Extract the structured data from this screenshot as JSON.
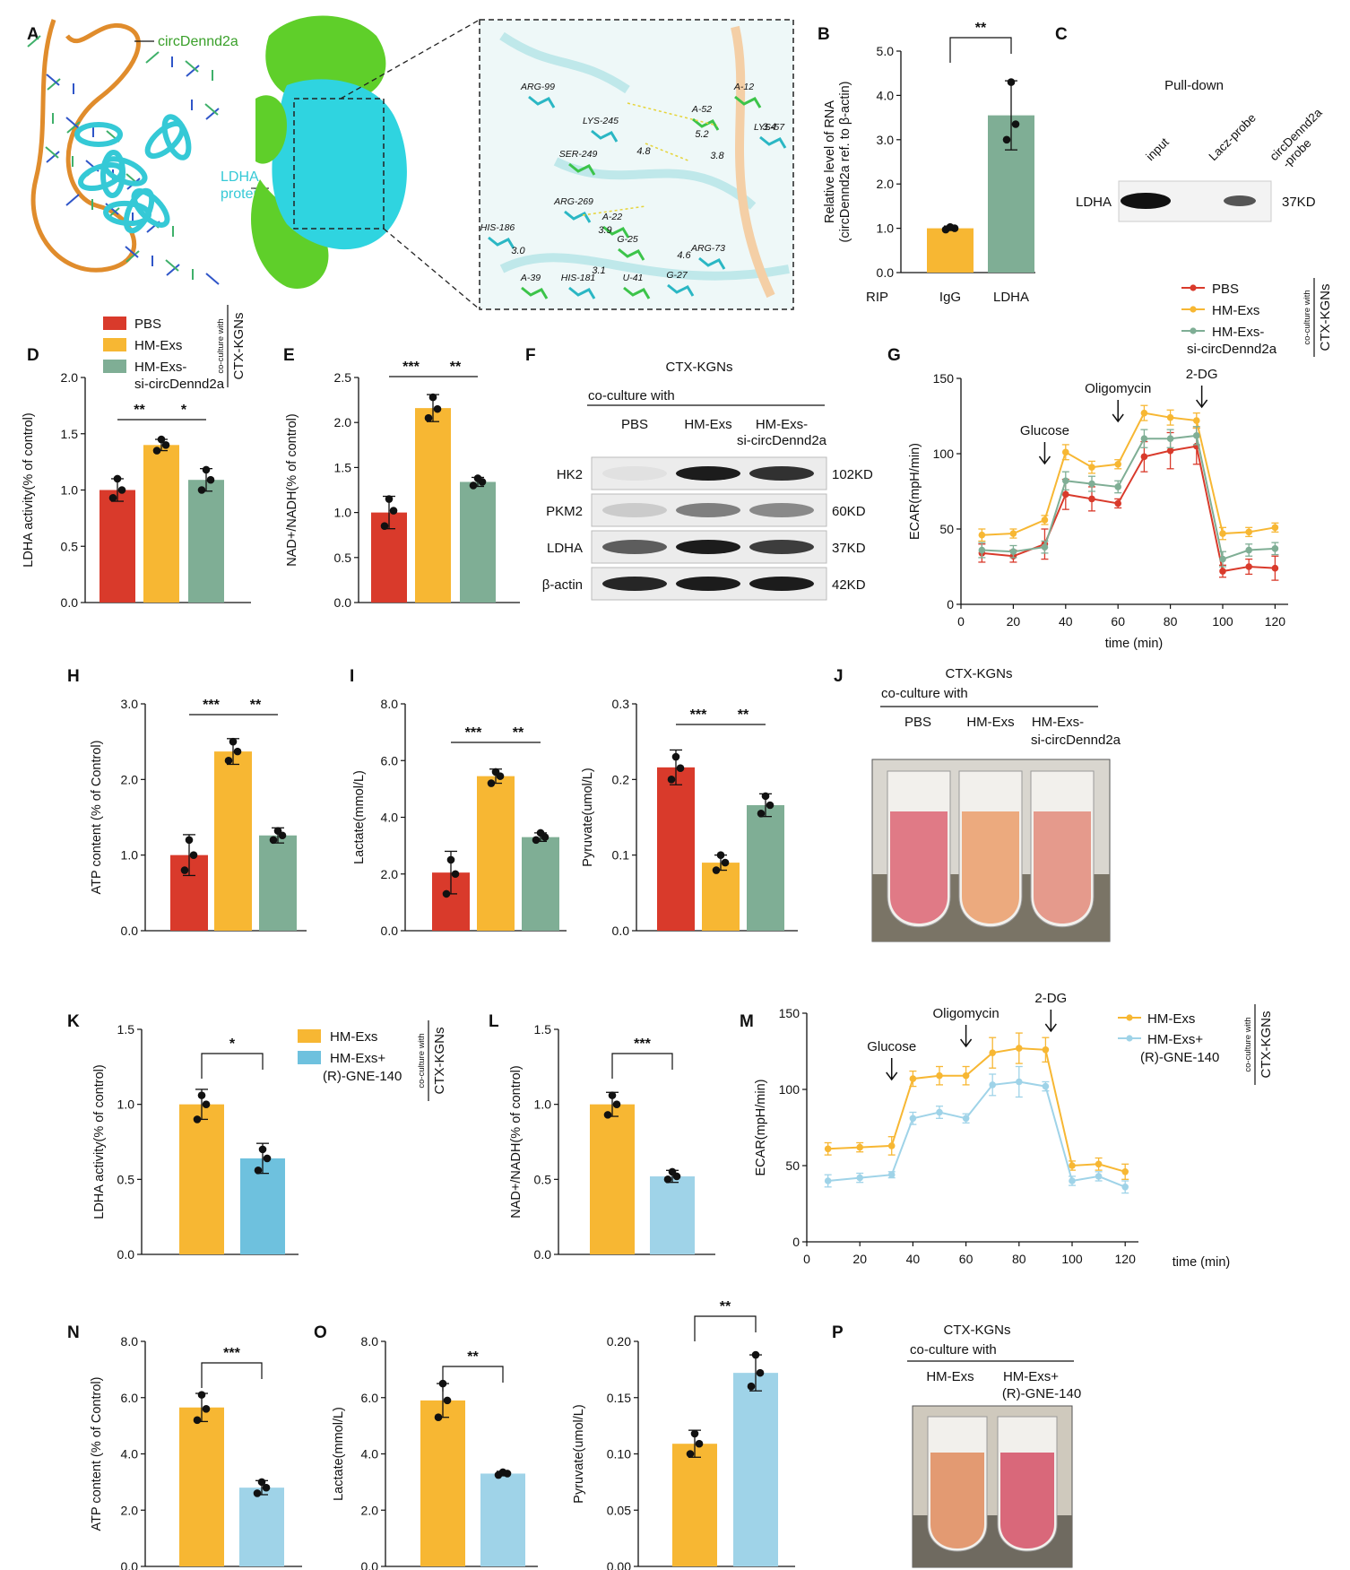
{
  "colors": {
    "red": "#d93a2b",
    "yellow": "#f7b733",
    "green": "#7fae95",
    "lightblue": "#9fd3e8",
    "cyan": "#35c9d6",
    "limegreen": "#5fcf2a",
    "orange": "#e08c2c"
  },
  "panelA": {
    "label": "A",
    "circ_label": "circDennd2a",
    "protein_label": [
      "LDHA",
      "protein"
    ],
    "residues": [
      "ARG-99",
      "A-12",
      "LYS-57",
      "A-52",
      "LYS-245",
      "SER-249",
      "ARG-269",
      "A-22",
      "HIS-186",
      "G-25",
      "ARG-73",
      "A-39",
      "HIS-181",
      "U-41",
      "G-27"
    ],
    "distances": [
      "5.2",
      "3.4",
      "3.8",
      "4.8",
      "3.9",
      "3.0",
      "3.1",
      "4.6"
    ]
  },
  "panelB": {
    "label": "B",
    "ylabel": [
      "Relative level of RNA",
      "(circDennd2a ref. to β-actin)"
    ],
    "prefix": "RIP",
    "chart_data": {
      "type": "bar",
      "categories": [
        "IgG",
        "LDHA"
      ],
      "values": [
        1.0,
        3.55
      ],
      "errors": [
        0.05,
        0.78
      ],
      "points": [
        [
          0.97,
          1.0,
          1.03
        ],
        [
          3.0,
          3.35,
          4.3
        ]
      ],
      "ylim": [
        0,
        5
      ],
      "yticks": [
        "0.0",
        "1.0",
        "2.0",
        "3.0",
        "4.0",
        "5.0"
      ],
      "sig": [
        {
          "pair": [
            0,
            1
          ],
          "label": "**"
        }
      ]
    }
  },
  "panelC": {
    "label": "C",
    "title": "Pull-down",
    "lanes": [
      "input",
      "Lacz-probe",
      "circDennd2a\n-probe"
    ],
    "row": "LDHA",
    "size": "37KD"
  },
  "legendTop": {
    "items": [
      "PBS",
      "HM-Exs",
      "HM-Exs-",
      "si-circDennd2a"
    ],
    "side_small": "co-culture with",
    "side_big": "CTX-KGNs"
  },
  "panelD": {
    "label": "D",
    "ylabel": "LDHA activity(% of control)",
    "chart_data": {
      "type": "bar",
      "categories": [
        "PBS",
        "HM-Exs",
        "HM-Exs-si-circDennd2a"
      ],
      "values": [
        1.0,
        1.4,
        1.09
      ],
      "errors": [
        0.1,
        0.05,
        0.1
      ],
      "points": [
        [
          0.93,
          1.0,
          1.1
        ],
        [
          1.35,
          1.4,
          1.45
        ],
        [
          1.0,
          1.09,
          1.18
        ]
      ],
      "ylim": [
        0,
        2
      ],
      "yticks": [
        "0.0",
        "0.5",
        "1.0",
        "1.5",
        "2.0"
      ],
      "sig": [
        {
          "pair": [
            0,
            1
          ],
          "label": "**"
        },
        {
          "pair": [
            1,
            2
          ],
          "label": "*"
        }
      ]
    }
  },
  "panelE": {
    "label": "E",
    "ylabel": "NAD+/NADH(% of control)",
    "chart_data": {
      "type": "bar",
      "categories": [
        "PBS",
        "HM-Exs",
        "HM-Exs-si-circDennd2a"
      ],
      "values": [
        1.0,
        2.16,
        1.34
      ],
      "errors": [
        0.18,
        0.15,
        0.05
      ],
      "points": [
        [
          0.85,
          1.02,
          1.15
        ],
        [
          2.05,
          2.15,
          2.28
        ],
        [
          1.3,
          1.34,
          1.38
        ]
      ],
      "ylim": [
        0,
        2.5
      ],
      "yticks": [
        "0.0",
        "0.5",
        "1.0",
        "1.5",
        "2.0",
        "2.5"
      ],
      "sig": [
        {
          "pair": [
            0,
            1
          ],
          "label": "***"
        },
        {
          "pair": [
            1,
            2
          ],
          "label": "**"
        }
      ]
    }
  },
  "panelF": {
    "label": "F",
    "title": "CTX-KGNs",
    "subtitle": "co-culture with",
    "lanes": [
      "PBS",
      "HM-Exs",
      "HM-Exs-\nsi-circDennd2a"
    ],
    "rows": [
      {
        "name": "HK2",
        "size": "102KD",
        "bands": [
          0.05,
          0.95,
          0.85
        ]
      },
      {
        "name": "PKM2",
        "size": "60KD",
        "bands": [
          0.15,
          0.5,
          0.45
        ]
      },
      {
        "name": "LDHA",
        "size": "37KD",
        "bands": [
          0.65,
          0.95,
          0.8
        ]
      },
      {
        "name": "β-actin",
        "size": "42KD",
        "bands": [
          0.9,
          0.95,
          0.95
        ]
      }
    ]
  },
  "panelG": {
    "label": "G",
    "ylabel": "ECAR(mpH/min)",
    "xlabel": "time (min)",
    "annotations": [
      "Glucose",
      "Oligomycin",
      "2-DG"
    ],
    "chart_data": {
      "type": "line",
      "x": [
        8,
        20,
        32,
        40,
        50,
        60,
        70,
        80,
        90,
        100,
        110,
        120
      ],
      "series": [
        {
          "name": "PBS",
          "values": [
            34,
            32,
            40,
            73,
            70,
            67,
            98,
            102,
            105,
            22,
            25,
            24
          ],
          "errors": [
            6,
            4,
            10,
            10,
            8,
            3,
            10,
            12,
            12,
            4,
            5,
            8
          ]
        },
        {
          "name": "HM-Exs",
          "values": [
            46,
            47,
            56,
            101,
            91,
            93,
            127,
            124,
            122,
            47,
            48,
            51
          ],
          "errors": [
            4,
            3,
            3,
            5,
            4,
            3,
            5,
            5,
            5,
            4,
            3,
            3
          ]
        },
        {
          "name": "HM-Exs-si-circDennd2a",
          "values": [
            36,
            35,
            38,
            82,
            80,
            78,
            110,
            110,
            112,
            30,
            36,
            37
          ],
          "errors": [
            5,
            4,
            4,
            6,
            5,
            4,
            6,
            6,
            6,
            5,
            4,
            4
          ]
        }
      ],
      "xlim": [
        0,
        125
      ],
      "ylim": [
        0,
        150
      ],
      "xticks": [
        "0",
        "20",
        "40",
        "60",
        "80",
        "100",
        "120"
      ],
      "yticks": [
        "0",
        "50",
        "100",
        "150"
      ]
    }
  },
  "panelH": {
    "label": "H",
    "ylabel": "ATP content (% of Control)",
    "chart_data": {
      "type": "bar",
      "categories": [
        "PBS",
        "HM-Exs",
        "HM-Exs-si-circDennd2a"
      ],
      "values": [
        1.0,
        2.37,
        1.26
      ],
      "errors": [
        0.27,
        0.17,
        0.1
      ],
      "points": [
        [
          0.8,
          1.0,
          1.2
        ],
        [
          2.25,
          2.37,
          2.5
        ],
        [
          1.2,
          1.26,
          1.32
        ]
      ],
      "ylim": [
        0,
        3
      ],
      "yticks": [
        "0.0",
        "1.0",
        "2.0",
        "3.0"
      ],
      "sig": [
        {
          "pair": [
            0,
            1
          ],
          "label": "***"
        },
        {
          "pair": [
            1,
            2
          ],
          "label": "**"
        }
      ]
    }
  },
  "panelI1": {
    "label": "I",
    "ylabel": "Lactate(mmol/L)",
    "chart_data": {
      "type": "bar",
      "categories": [
        "PBS",
        "HM-Exs",
        "HM-Exs-si-circDennd2a"
      ],
      "values": [
        2.05,
        5.45,
        3.3
      ],
      "errors": [
        0.75,
        0.25,
        0.15
      ],
      "points": [
        [
          1.3,
          2.0,
          2.5
        ],
        [
          5.2,
          5.45,
          5.6
        ],
        [
          3.2,
          3.3,
          3.45
        ]
      ],
      "ylim": [
        0,
        8
      ],
      "yticks": [
        "0.0",
        "2.0",
        "4.0",
        "6.0",
        "8.0"
      ],
      "sig": [
        {
          "pair": [
            0,
            1
          ],
          "label": "***"
        },
        {
          "pair": [
            1,
            2
          ],
          "label": "**"
        }
      ]
    }
  },
  "panelI2": {
    "label": "",
    "ylabel": "Pyruvate(umol/L)",
    "chart_data": {
      "type": "bar",
      "categories": [
        "PBS",
        "HM-Exs",
        "HM-Exs-si-circDennd2a"
      ],
      "values": [
        0.216,
        0.09,
        0.166
      ],
      "errors": [
        0.023,
        0.01,
        0.015
      ],
      "points": [
        [
          0.2,
          0.215,
          0.23
        ],
        [
          0.08,
          0.09,
          0.1
        ],
        [
          0.155,
          0.166,
          0.178
        ]
      ],
      "ylim": [
        0,
        0.3
      ],
      "yticks": [
        "0.0",
        "0.1",
        "0.2",
        "0.3"
      ],
      "sig": [
        {
          "pair": [
            0,
            1
          ],
          "label": "***"
        },
        {
          "pair": [
            1,
            2
          ],
          "label": "**"
        }
      ]
    }
  },
  "panelJ": {
    "label": "J",
    "title": "CTX-KGNs",
    "subtitle": "co-culture with",
    "lanes": [
      "PBS",
      "HM-Exs",
      "HM-Exs-\nsi-circDennd2a"
    ],
    "tubes": [
      "#e07a86",
      "#ecaa7e",
      "#e59a8c"
    ]
  },
  "panelK": {
    "label": "K",
    "ylabel": "LDHA activity(% of control)",
    "chart_data": {
      "type": "bar",
      "categories": [
        "HM-Exs",
        "HM-Exs+(R)-GNE-140"
      ],
      "values": [
        1.0,
        0.64
      ],
      "errors": [
        0.1,
        0.1
      ],
      "points": [
        [
          0.9,
          1.0,
          1.06
        ],
        [
          0.56,
          0.64,
          0.7
        ]
      ],
      "ylim": [
        0,
        1.5
      ],
      "yticks": [
        "0.0",
        "0.5",
        "1.0",
        "1.5"
      ],
      "sig": [
        {
          "pair": [
            0,
            1
          ],
          "label": "*"
        }
      ]
    }
  },
  "legendK": {
    "items": [
      "HM-Exs",
      "HM-Exs+",
      "(R)-GNE-140"
    ],
    "side_small": "co-culture with",
    "side_big": "CTX-KGNs"
  },
  "panelL": {
    "label": "L",
    "ylabel": "NAD+/NADH(% of control)",
    "chart_data": {
      "type": "bar",
      "categories": [
        "HM-Exs",
        "HM-Exs+(R)-GNE-140"
      ],
      "values": [
        1.0,
        0.52
      ],
      "errors": [
        0.08,
        0.04
      ],
      "points": [
        [
          0.93,
          1.0,
          1.06
        ],
        [
          0.5,
          0.52,
          0.55
        ]
      ],
      "ylim": [
        0,
        1.5
      ],
      "yticks": [
        "0.0",
        "0.5",
        "1.0",
        "1.5"
      ],
      "sig": [
        {
          "pair": [
            0,
            1
          ],
          "label": "***"
        }
      ]
    }
  },
  "panelM": {
    "label": "M",
    "ylabel": "ECAR(mpH/min)",
    "xlabel": "time (min)",
    "annotations": [
      "Glucose",
      "Oligomycin",
      "2-DG"
    ],
    "chart_data": {
      "type": "line",
      "x": [
        8,
        20,
        32,
        40,
        50,
        60,
        70,
        80,
        90,
        100,
        110,
        120
      ],
      "series": [
        {
          "name": "HM-Exs",
          "values": [
            61,
            62,
            63,
            107,
            109,
            109,
            124,
            127,
            126,
            50,
            51,
            46
          ],
          "errors": [
            4,
            3,
            6,
            5,
            6,
            6,
            10,
            10,
            8,
            3,
            4,
            5
          ]
        },
        {
          "name": "HM-Exs+(R)-GNE-140",
          "values": [
            40,
            42,
            44,
            81,
            85,
            81,
            103,
            105,
            102,
            40,
            43,
            36
          ],
          "errors": [
            4,
            3,
            2,
            4,
            4,
            3,
            7,
            10,
            3,
            3,
            3,
            4
          ]
        }
      ],
      "xlim": [
        0,
        125
      ],
      "ylim": [
        0,
        150
      ],
      "xticks": [
        "0",
        "20",
        "40",
        "60",
        "80",
        "100",
        "120"
      ],
      "yticks": [
        "0",
        "50",
        "100",
        "150"
      ]
    }
  },
  "legendM": {
    "items": [
      "HM-Exs",
      "HM-Exs+",
      "(R)-GNE-140"
    ],
    "side_small": "co-culture with",
    "side_big": "CTX-KGNs"
  },
  "panelN": {
    "label": "N",
    "ylabel": "ATP content (% of Control)",
    "chart_data": {
      "type": "bar",
      "categories": [
        "HM-Exs",
        "HM-Exs+(R)-GNE-140"
      ],
      "values": [
        5.65,
        2.8
      ],
      "errors": [
        0.5,
        0.25
      ],
      "points": [
        [
          5.2,
          5.6,
          6.1
        ],
        [
          2.6,
          2.8,
          3.0
        ]
      ],
      "ylim": [
        0,
        8
      ],
      "yticks": [
        "0.0",
        "2.0",
        "4.0",
        "6.0",
        "8.0"
      ],
      "sig": [
        {
          "pair": [
            0,
            1
          ],
          "label": "***"
        }
      ]
    }
  },
  "panelO1": {
    "label": "O",
    "ylabel": "Lactate(mmol/L)",
    "chart_data": {
      "type": "bar",
      "categories": [
        "HM-Exs",
        "HM-Exs+(R)-GNE-140"
      ],
      "values": [
        5.9,
        3.3
      ],
      "errors": [
        0.6,
        0.08
      ],
      "points": [
        [
          5.3,
          5.9,
          6.5
        ],
        [
          3.25,
          3.3,
          3.35
        ]
      ],
      "ylim": [
        0,
        8
      ],
      "yticks": [
        "0.0",
        "2.0",
        "4.0",
        "6.0",
        "8.0"
      ],
      "sig": [
        {
          "pair": [
            0,
            1
          ],
          "label": "**"
        }
      ]
    }
  },
  "panelO2": {
    "label": "",
    "ylabel": "Pyruvate(umol/L)",
    "chart_data": {
      "type": "bar",
      "categories": [
        "HM-Exs",
        "HM-Exs+(R)-GNE-140"
      ],
      "values": [
        0.109,
        0.172
      ],
      "errors": [
        0.012,
        0.016
      ],
      "points": [
        [
          0.1,
          0.109,
          0.118
        ],
        [
          0.16,
          0.172,
          0.188
        ]
      ],
      "ylim": [
        0,
        0.2
      ],
      "yticks": [
        "0.00",
        "0.05",
        "0.10",
        "0.15",
        "0.20"
      ],
      "sig": [
        {
          "pair": [
            0,
            1
          ],
          "label": "**"
        }
      ]
    }
  },
  "panelP": {
    "label": "P",
    "title": "CTX-KGNs",
    "subtitle": "co-culture with",
    "lanes": [
      "HM-Exs",
      "HM-Exs+\n(R)-GNE-140"
    ],
    "tubes": [
      "#e39a72",
      "#d9687a"
    ]
  }
}
